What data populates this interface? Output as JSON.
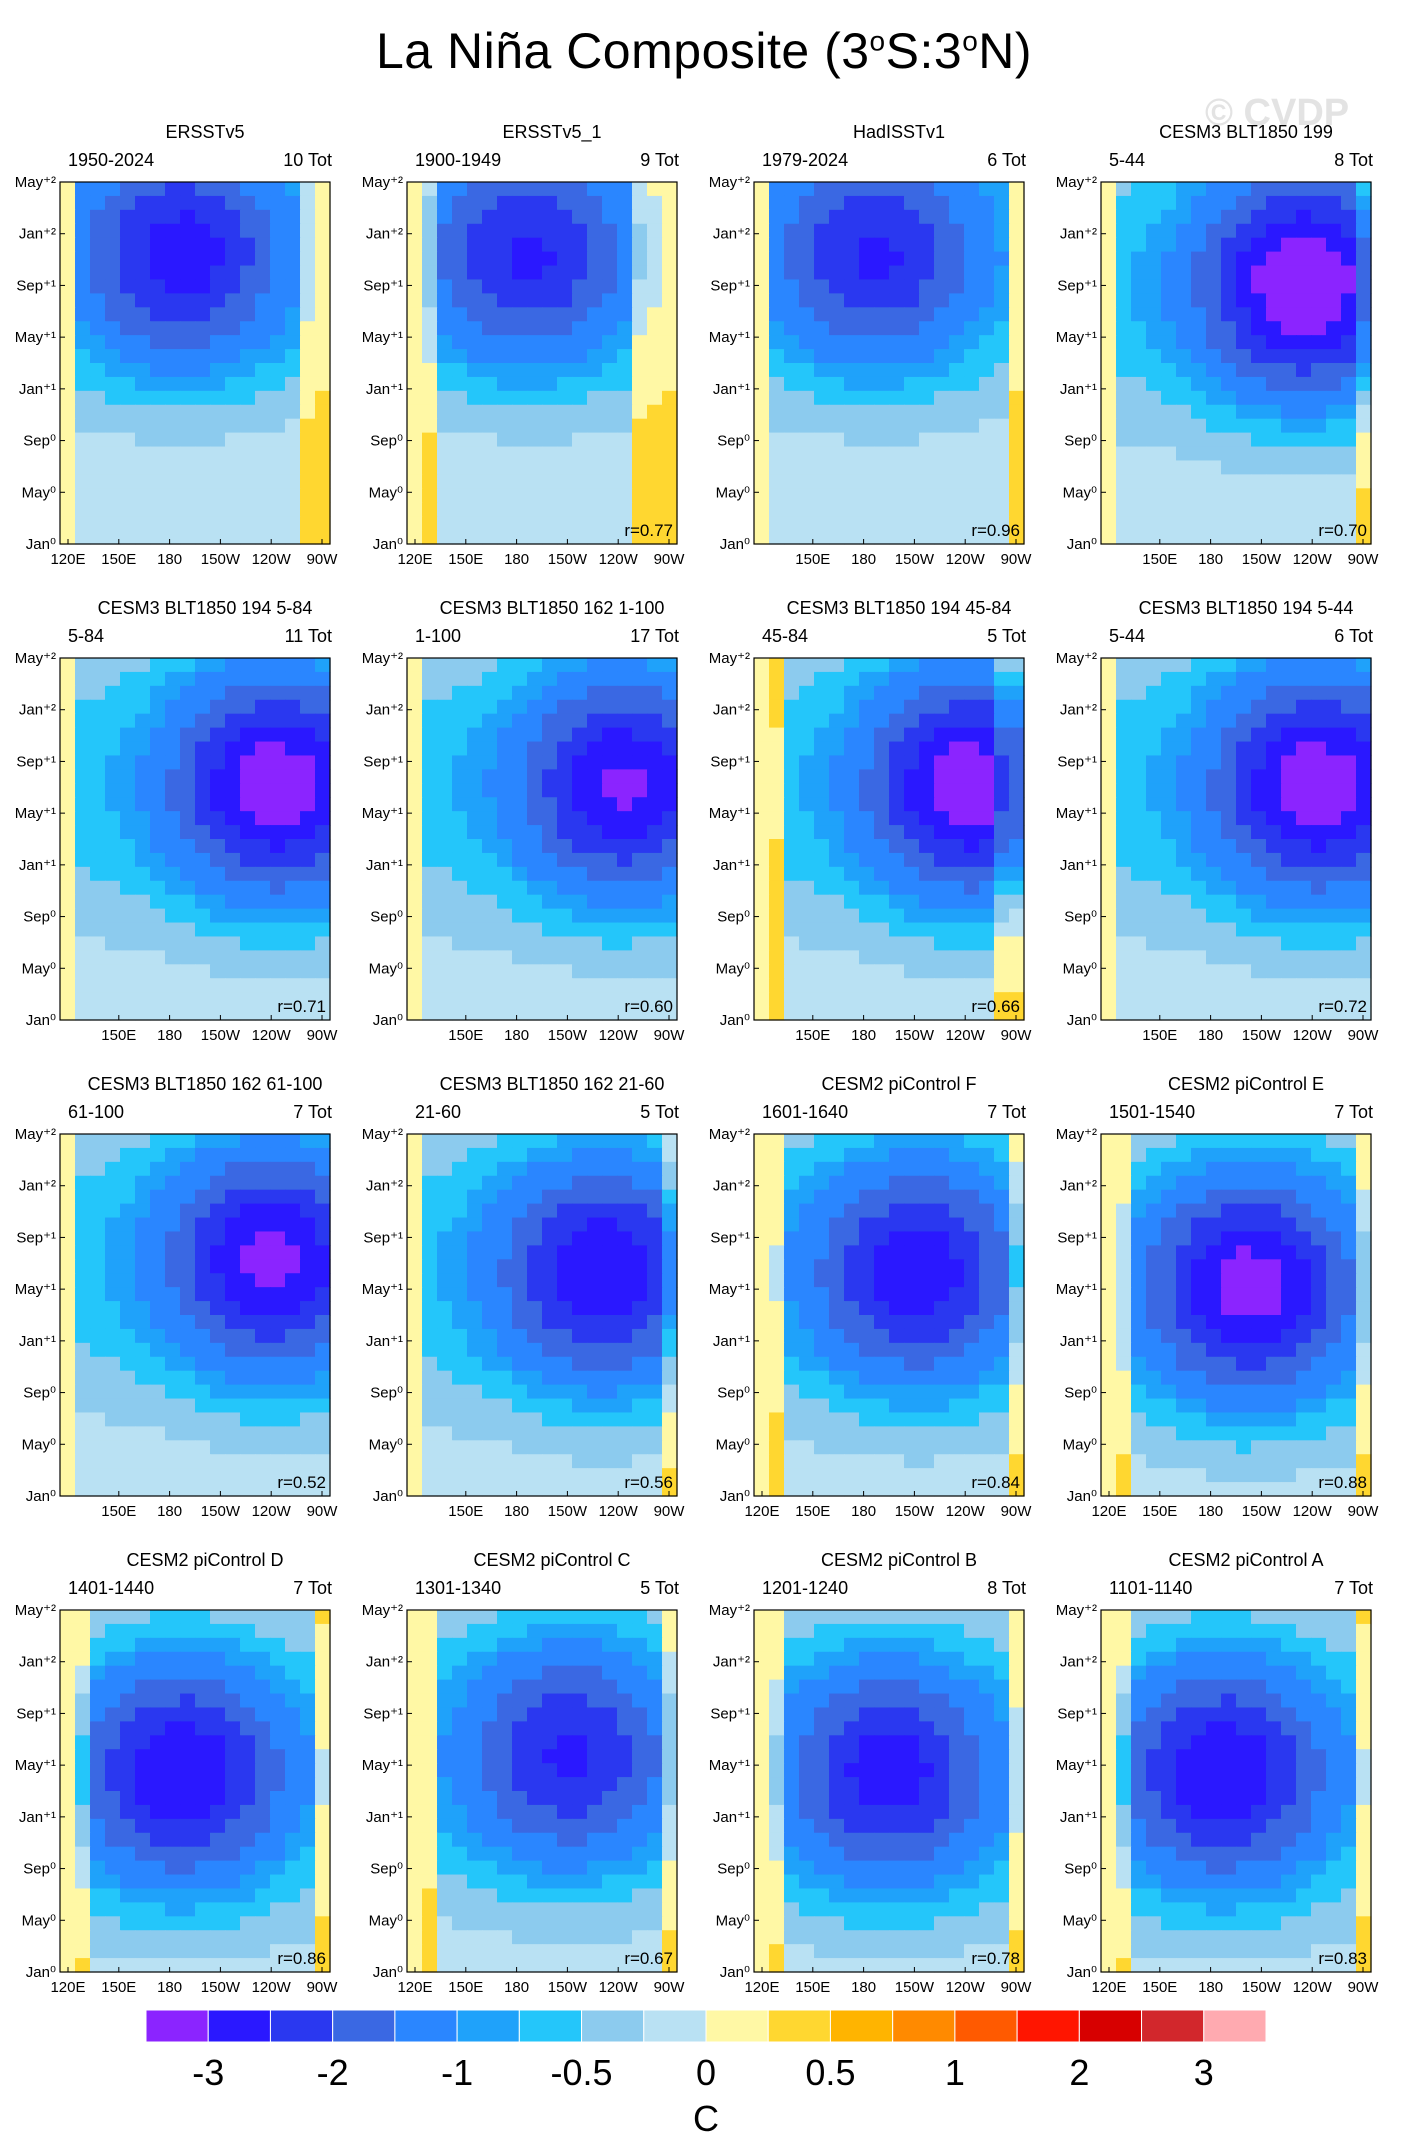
{
  "title_text": "La Niña Composite (3",
  "title_sup1": "o",
  "title_mid": "S:3",
  "title_sup2": "o",
  "title_end": "N)",
  "watermark": "© CVDP",
  "colors": {
    "scale": [
      "#8b24ff",
      "#2a18ff",
      "#2a38f0",
      "#3a68e3",
      "#2a86ff",
      "#1fa2fa",
      "#24c6fa",
      "#8ccbee",
      "#b9e1f3",
      "#fff8a5",
      "#ffd730",
      "#ffb400",
      "#ff8a00",
      "#ff5a00",
      "#ff1500",
      "#d70000",
      "#d2272c",
      "#ffaab0"
    ],
    "axes": "#000000"
  },
  "y_ticks": [
    "May⁺²",
    "Jan⁺²",
    "Sep⁺¹",
    "May⁺¹",
    "Jan⁺¹",
    "Sep⁰",
    "May⁰",
    "Jan⁰"
  ],
  "x_ticks": [
    "120E",
    "150E",
    "180",
    "150W",
    "120W",
    "90W"
  ],
  "colorbar": {
    "labels": [
      "-3",
      "-2",
      "-1",
      "-0.5",
      "0",
      "0.5",
      "1",
      "2",
      "3"
    ],
    "unit": "C"
  },
  "chart_data": [
    {
      "type": "heatmap",
      "title": "ERSSTv5",
      "years": "1950-2024",
      "tot": "10 Tot",
      "r": "",
      "min": -2.2,
      "peak": [
        0.2,
        0.45
      ],
      "ext": [
        0.08,
        0.9
      ],
      "show_left_x": true
    },
    {
      "type": "heatmap",
      "title": "ERSSTv5_1",
      "years": "1900-1949",
      "tot": "9 Tot",
      "r": "r=0.77",
      "min": -2.0,
      "peak": [
        0.2,
        0.45
      ],
      "ext": [
        0.1,
        0.85
      ],
      "show_left_x": true
    },
    {
      "type": "heatmap",
      "title": "HadISSTv1",
      "years": "1979-2024",
      "tot": "6 Tot",
      "r": "r=0.96",
      "min": -2.0,
      "peak": [
        0.2,
        0.45
      ],
      "ext": [
        0.05,
        0.95
      ],
      "show_left_x": false
    },
    {
      "type": "heatmap",
      "title": "CESM3 BLT1850 199",
      "years": "5-44",
      "tot": "8 Tot",
      "r": "r=0.70",
      "min": -3.0,
      "peak": [
        0.28,
        0.75
      ],
      "ext": [
        0.05,
        0.95
      ],
      "show_left_x": false
    },
    {
      "type": "heatmap",
      "title": "CESM3 BLT1850 194 5-84",
      "years": "5-84",
      "tot": "11 Tot",
      "r": "r=0.71",
      "min": -2.8,
      "peak": [
        0.35,
        0.8
      ],
      "ext": [
        0.05,
        1.0
      ],
      "show_left_x": false
    },
    {
      "type": "heatmap",
      "title": "CESM3 BLT1850 162 1-100",
      "years": "1-100",
      "tot": "17 Tot",
      "r": "r=0.60",
      "min": -2.5,
      "peak": [
        0.35,
        0.8
      ],
      "ext": [
        0.05,
        1.0
      ],
      "show_left_x": false
    },
    {
      "type": "heatmap",
      "title": "CESM3 BLT1850 194 45-84",
      "years": "45-84",
      "tot": "5 Tot",
      "r": "r=0.66",
      "min": -2.8,
      "peak": [
        0.35,
        0.8
      ],
      "ext": [
        0.1,
        0.9
      ],
      "show_left_x": false
    },
    {
      "type": "heatmap",
      "title": "CESM3 BLT1850 194 5-44",
      "years": "5-44",
      "tot": "6 Tot",
      "r": "r=0.72",
      "min": -2.8,
      "peak": [
        0.35,
        0.8
      ],
      "ext": [
        0.05,
        1.0
      ],
      "show_left_x": false
    },
    {
      "type": "heatmap",
      "title": "CESM3 BLT1850 162 61-100",
      "years": "61-100",
      "tot": "7 Tot",
      "r": "r=0.52",
      "min": -2.6,
      "peak": [
        0.35,
        0.78
      ],
      "ext": [
        0.05,
        1.0
      ],
      "show_left_x": false
    },
    {
      "type": "heatmap",
      "title": "CESM3 BLT1850 162 21-60",
      "years": "21-60",
      "tot": "5 Tot",
      "r": "r=0.56",
      "min": -2.4,
      "peak": [
        0.38,
        0.72
      ],
      "ext": [
        0.05,
        0.95
      ],
      "show_left_x": false
    },
    {
      "type": "heatmap",
      "title": "CESM2 piControl F",
      "years": "1601-1640",
      "tot": "7 Tot",
      "r": "r=0.84",
      "min": -2.3,
      "peak": [
        0.38,
        0.6
      ],
      "ext": [
        0.12,
        0.95
      ],
      "show_left_x": true
    },
    {
      "type": "heatmap",
      "title": "CESM2 piControl E",
      "years": "1501-1540",
      "tot": "7 Tot",
      "r": "r=0.88",
      "min": -2.7,
      "peak": [
        0.42,
        0.55
      ],
      "ext": [
        0.1,
        0.95
      ],
      "show_left_x": true
    },
    {
      "type": "heatmap",
      "title": "CESM2 piControl D",
      "years": "1401-1440",
      "tot": "7 Tot",
      "r": "r=0.86",
      "min": -2.4,
      "peak": [
        0.45,
        0.45
      ],
      "ext": [
        0.12,
        0.92
      ],
      "show_left_x": true
    },
    {
      "type": "heatmap",
      "title": "CESM2 piControl C",
      "years": "1301-1340",
      "tot": "5 Tot",
      "r": "r=0.67",
      "min": -2.0,
      "peak": [
        0.4,
        0.6
      ],
      "ext": [
        0.12,
        0.92
      ],
      "show_left_x": true
    },
    {
      "type": "heatmap",
      "title": "CESM2 piControl B",
      "years": "1201-1240",
      "tot": "8 Tot",
      "r": "r=0.78",
      "min": -2.2,
      "peak": [
        0.45,
        0.5
      ],
      "ext": [
        0.1,
        0.95
      ],
      "show_left_x": true
    },
    {
      "type": "heatmap",
      "title": "CESM2 piControl A",
      "years": "1101-1140",
      "tot": "7 Tot",
      "r": "r=0.83",
      "min": -2.4,
      "peak": [
        0.45,
        0.45
      ],
      "ext": [
        0.12,
        0.92
      ],
      "show_left_x": true
    }
  ]
}
